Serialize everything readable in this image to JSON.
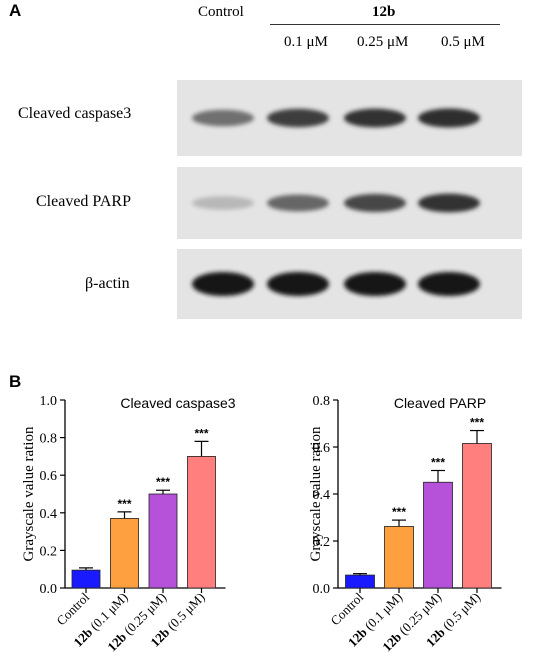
{
  "panel_a": {
    "letter": "A",
    "control_label": "Control",
    "group_label": "12b",
    "doses": [
      "0.1 μM",
      "0.25 μM",
      "0.5 μM"
    ],
    "rows": [
      {
        "label": "Cleaved caspase3",
        "intensity": [
          0.55,
          0.8,
          0.85,
          0.88
        ]
      },
      {
        "label": "Cleaved PARP",
        "intensity": [
          0.2,
          0.6,
          0.75,
          0.85
        ]
      },
      {
        "label": "β-actin",
        "intensity": [
          1.0,
          1.0,
          1.0,
          1.0
        ]
      }
    ]
  },
  "panel_b": {
    "letter": "B"
  },
  "chart_data": [
    {
      "type": "bar",
      "title": "Cleaved caspase3",
      "ylabel": "Grayscale value ration",
      "xlabel": "",
      "ylim": [
        0,
        1.0
      ],
      "yticks": [
        "0.0",
        "0.2",
        "0.4",
        "0.6",
        "0.8",
        "1.0"
      ],
      "categories": [
        {
          "bold": "",
          "text": "Control"
        },
        {
          "bold": "12b",
          "text": " (0.1 μM)"
        },
        {
          "bold": "12b",
          "text": " (0.25 μM)"
        },
        {
          "bold": "12b",
          "text": " (0.5 μM)"
        }
      ],
      "values": [
        0.095,
        0.37,
        0.5,
        0.7
      ],
      "errors": [
        0.012,
        0.035,
        0.02,
        0.08
      ],
      "significance": [
        "",
        "***",
        "***",
        "***"
      ],
      "colors": [
        "#1a1aff",
        "#ffa040",
        "#b552d9",
        "#ff7f7f"
      ]
    },
    {
      "type": "bar",
      "title": "Cleaved PARP",
      "ylabel": "Grayscale value ration",
      "xlabel": "",
      "ylim": [
        0,
        0.8
      ],
      "yticks": [
        "0.0",
        "0.2",
        "0.4",
        "0.6",
        "0.8"
      ],
      "categories": [
        {
          "bold": "",
          "text": "Control"
        },
        {
          "bold": "12b",
          "text": " (0.1 μM)"
        },
        {
          "bold": "12b",
          "text": " (0.25 μM)"
        },
        {
          "bold": "12b",
          "text": " (0.5 μM)"
        }
      ],
      "values": [
        0.055,
        0.262,
        0.45,
        0.615
      ],
      "errors": [
        0.006,
        0.027,
        0.05,
        0.055
      ],
      "significance": [
        "",
        "***",
        "***",
        "***"
      ],
      "colors": [
        "#1a1aff",
        "#ffa040",
        "#b552d9",
        "#ff7f7f"
      ]
    }
  ]
}
